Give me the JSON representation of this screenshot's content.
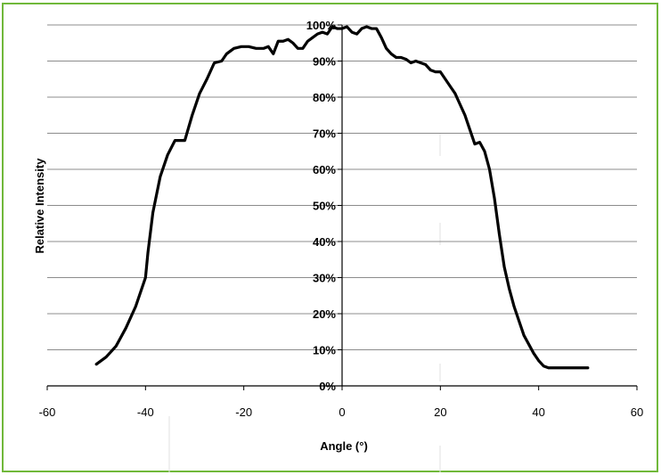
{
  "chart_data": {
    "type": "line",
    "title": "",
    "xlabel": "Angle (°)",
    "ylabel": "Relative Intensity",
    "xlim": [
      -60,
      60
    ],
    "ylim": [
      0,
      100
    ],
    "x_ticks": [
      -60,
      -40,
      -20,
      0,
      20,
      40,
      60
    ],
    "x_tick_labels": [
      "-60",
      "-40",
      "-20",
      "0",
      "20",
      "40",
      "60"
    ],
    "y_ticks": [
      0,
      10,
      20,
      30,
      40,
      50,
      60,
      70,
      80,
      90,
      100
    ],
    "y_tick_labels": [
      "0%",
      "10%",
      "20%",
      "30%",
      "40%",
      "50%",
      "60%",
      "70%",
      "80%",
      "90%",
      "100%"
    ],
    "grid": true,
    "legend": "none",
    "line_color": "#000000",
    "frame_color": "#70b83a",
    "series": [
      {
        "x": [
          -50,
          -48,
          -46,
          -44,
          -42,
          -40,
          -39.5,
          -38.5,
          -37,
          -35.5,
          -34,
          -33,
          -32,
          -30.5,
          -29,
          -27.5,
          -26,
          -24.5,
          -23.5,
          -22,
          -20.5,
          -19,
          -17.5,
          -16,
          -15,
          -14,
          -13,
          -12,
          -11,
          -10,
          -9,
          -8,
          -7,
          -6,
          -5,
          -4,
          -3,
          -2,
          -1,
          0,
          1,
          2,
          3,
          4,
          5,
          6,
          7,
          8,
          9,
          10,
          11,
          12,
          13,
          14,
          15,
          16,
          17,
          18,
          19,
          20,
          21,
          22,
          23,
          24,
          25,
          26,
          27,
          28,
          29,
          30,
          31,
          32,
          33,
          34,
          35,
          36,
          37,
          38,
          39,
          40,
          41,
          42,
          43,
          44,
          45,
          46,
          47,
          48,
          49,
          50
        ],
        "values": [
          6,
          8,
          11,
          16,
          22,
          30,
          37,
          48,
          58,
          64,
          68,
          68,
          68,
          75,
          81,
          85,
          89.5,
          90,
          92,
          93.5,
          94,
          94,
          93.5,
          93.5,
          94,
          92,
          95.5,
          95.5,
          96,
          95,
          93.5,
          93.5,
          95.5,
          96.5,
          97.5,
          98,
          97.5,
          99.5,
          99,
          99,
          99.5,
          98,
          97.5,
          99,
          99.5,
          99,
          99,
          96.5,
          93.5,
          92,
          91,
          91,
          90.5,
          89.5,
          90,
          89.5,
          89,
          87.5,
          87,
          87,
          85,
          83,
          81,
          78,
          75,
          71,
          67,
          67.5,
          65,
          60,
          52,
          42,
          33,
          27,
          22,
          18,
          14,
          11.5,
          9,
          7,
          5.5,
          5,
          5,
          5,
          5,
          5,
          5,
          5,
          5,
          5
        ]
      }
    ]
  }
}
